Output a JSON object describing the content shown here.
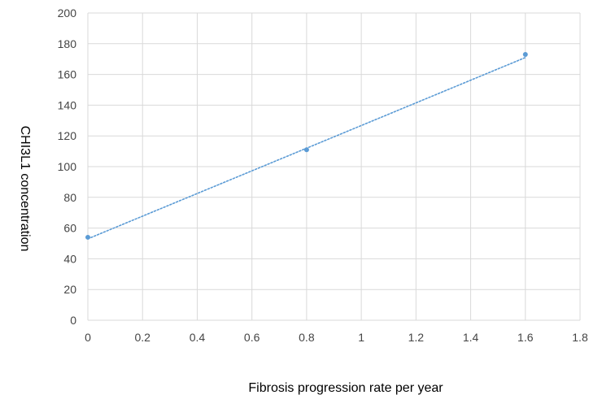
{
  "chart_data": {
    "type": "scatter",
    "title": "",
    "xlabel": "Fibrosis progression rate per year",
    "ylabel": "CHI3L1 concentration",
    "xlim": [
      0,
      1.8
    ],
    "ylim": [
      0,
      200
    ],
    "x_ticks": [
      0,
      0.2,
      0.4,
      0.6,
      0.8,
      1,
      1.2,
      1.4,
      1.6,
      1.8
    ],
    "x_tick_labels": [
      "0",
      "0.2",
      "0.4",
      "0.6",
      "0.8",
      "1",
      "1.2",
      "1.4",
      "1.6",
      "1.8"
    ],
    "y_ticks": [
      0,
      20,
      40,
      60,
      80,
      100,
      120,
      140,
      160,
      180,
      200
    ],
    "y_tick_labels": [
      "0",
      "20",
      "40",
      "60",
      "80",
      "100",
      "120",
      "140",
      "160",
      "180",
      "200"
    ],
    "grid": true,
    "legend": "none",
    "series": [
      {
        "x": [
          0,
          0.8,
          1.6
        ],
        "y": [
          54,
          111,
          173
        ],
        "color": "#5b9bd5",
        "trendline": {
          "type": "linear",
          "style": "dotted",
          "from": [
            0,
            53
          ],
          "to": [
            1.6,
            171
          ]
        }
      }
    ]
  }
}
